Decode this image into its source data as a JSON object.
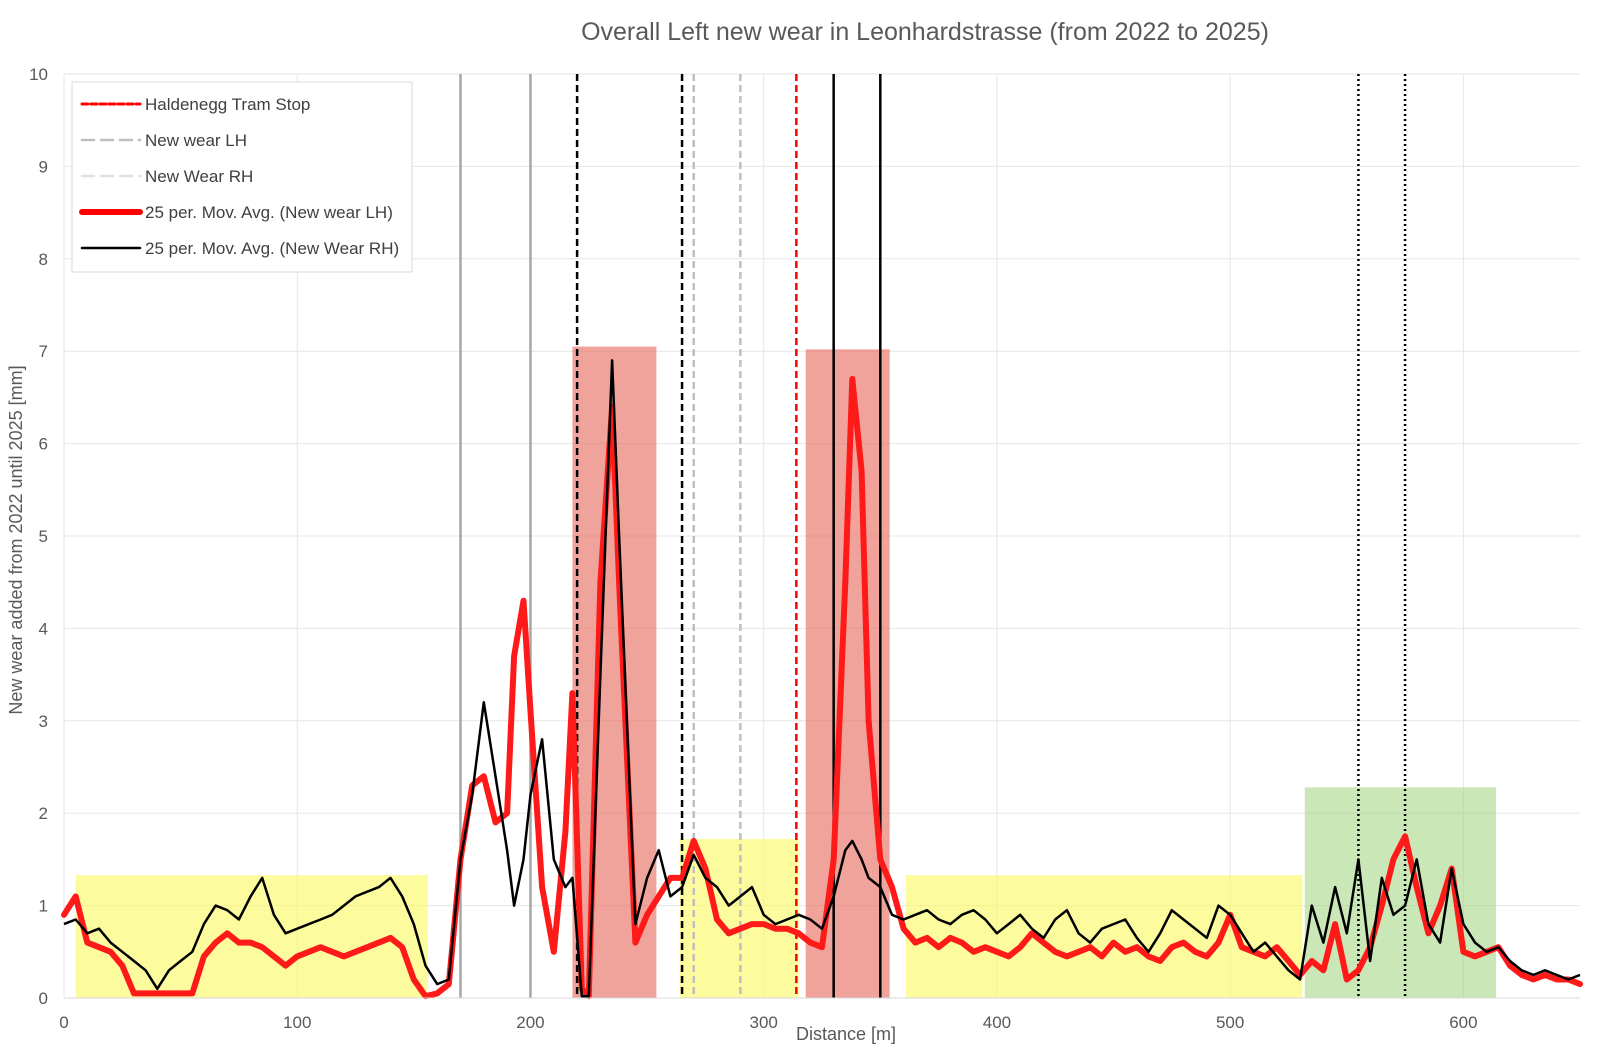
{
  "chart_data": {
    "type": "line",
    "title": "Overall Left new wear in Leonhardstrasse (from 2022 to 2025)",
    "xlabel": "Distance [m]",
    "ylabel": "New wear added from 2022 until 2025  [mm]",
    "xlim": [
      0,
      650
    ],
    "ylim": [
      0,
      10
    ],
    "x_ticks": [
      "0",
      "100",
      "200",
      "300",
      "400",
      "500",
      "600"
    ],
    "y_ticks": [
      "0",
      "1",
      "2",
      "3",
      "4",
      "5",
      "6",
      "7",
      "8",
      "9",
      "10"
    ],
    "grid": true,
    "legend_position": "top-left",
    "colors": {
      "lh_avg": "#ff1a1a",
      "rh_avg": "#000000",
      "tram_stop": "#ff0000",
      "raw": "#c8c8c8"
    },
    "legend": [
      {
        "label": "Haldenegg Tram Stop",
        "style": "red-dashed"
      },
      {
        "label": "New wear LH",
        "style": "gray-dashed"
      },
      {
        "label": "New Wear RH",
        "style": "lightgray-dashed"
      },
      {
        "label": "25 per. Mov. Avg. (New wear LH)",
        "style": "red-thick"
      },
      {
        "label": "25 per. Mov. Avg. (New Wear RH)",
        "style": "black-solid"
      }
    ],
    "highlight_regions": [
      {
        "x0": 5,
        "x1": 156,
        "y1": 1.33,
        "color": "yellow"
      },
      {
        "x0": 218,
        "x1": 254,
        "y1": 7.05,
        "color": "red"
      },
      {
        "x0": 264,
        "x1": 315,
        "y1": 1.72,
        "color": "yellow"
      },
      {
        "x0": 318,
        "x1": 354,
        "y1": 7.02,
        "color": "red"
      },
      {
        "x0": 361,
        "x1": 531,
        "y1": 1.33,
        "color": "yellow"
      },
      {
        "x0": 532,
        "x1": 614,
        "y1": 2.28,
        "color": "green"
      }
    ],
    "vertical_markers": [
      {
        "x": 170,
        "color": "#a6a6a6",
        "dash": "solid"
      },
      {
        "x": 200,
        "color": "#a6a6a6",
        "dash": "solid"
      },
      {
        "x": 220,
        "color": "#000000",
        "dash": "dashed"
      },
      {
        "x": 265,
        "color": "#000000",
        "dash": "dashed"
      },
      {
        "x": 270,
        "color": "#bfbfbf",
        "dash": "dashed"
      },
      {
        "x": 290,
        "color": "#bfbfbf",
        "dash": "dashed"
      },
      {
        "x": 314,
        "color": "#ff0000",
        "dash": "dashed"
      },
      {
        "x": 330,
        "color": "#000000",
        "dash": "solid"
      },
      {
        "x": 350,
        "color": "#000000",
        "dash": "solid"
      },
      {
        "x": 555,
        "color": "#000000",
        "dash": "dotted"
      },
      {
        "x": 575,
        "color": "#000000",
        "dash": "dotted"
      }
    ],
    "series": [
      {
        "name": "25 per. Mov. Avg. (New wear LH)",
        "x": [
          0,
          5,
          10,
          15,
          20,
          25,
          30,
          35,
          40,
          45,
          50,
          55,
          60,
          65,
          70,
          75,
          80,
          85,
          90,
          95,
          100,
          105,
          110,
          115,
          120,
          125,
          130,
          135,
          140,
          145,
          150,
          155,
          160,
          165,
          170,
          175,
          180,
          185,
          190,
          193,
          197,
          200,
          205,
          210,
          215,
          218,
          222,
          225,
          230,
          235,
          238,
          245,
          250,
          255,
          260,
          265,
          270,
          275,
          280,
          285,
          290,
          295,
          300,
          305,
          310,
          315,
          320,
          325,
          330,
          335,
          338,
          342,
          345,
          350,
          355,
          360,
          365,
          370,
          375,
          380,
          385,
          390,
          395,
          400,
          405,
          410,
          415,
          420,
          425,
          430,
          435,
          440,
          445,
          450,
          455,
          460,
          465,
          470,
          475,
          480,
          485,
          490,
          495,
          500,
          505,
          510,
          515,
          520,
          525,
          530,
          535,
          540,
          545,
          550,
          555,
          560,
          565,
          570,
          575,
          580,
          585,
          590,
          595,
          600,
          605,
          610,
          615,
          620,
          625,
          630,
          635,
          640,
          645,
          650
        ],
        "y": [
          0.9,
          1.1,
          0.6,
          0.55,
          0.5,
          0.35,
          0.05,
          0.05,
          0.05,
          0.05,
          0.05,
          0.05,
          0.45,
          0.6,
          0.7,
          0.6,
          0.6,
          0.55,
          0.45,
          0.35,
          0.45,
          0.5,
          0.55,
          0.5,
          0.45,
          0.5,
          0.55,
          0.6,
          0.65,
          0.55,
          0.2,
          0.02,
          0.05,
          0.15,
          1.5,
          2.3,
          2.4,
          1.9,
          2.0,
          3.7,
          4.3,
          3.1,
          1.2,
          0.5,
          1.8,
          3.3,
          0.1,
          0.02,
          4.5,
          6.4,
          4.5,
          0.6,
          0.9,
          1.1,
          1.3,
          1.3,
          1.7,
          1.4,
          0.85,
          0.7,
          0.75,
          0.8,
          0.8,
          0.75,
          0.75,
          0.7,
          0.6,
          0.55,
          1.5,
          4.5,
          6.7,
          5.7,
          3.0,
          1.5,
          1.2,
          0.75,
          0.6,
          0.65,
          0.55,
          0.65,
          0.6,
          0.5,
          0.55,
          0.5,
          0.45,
          0.55,
          0.7,
          0.6,
          0.5,
          0.45,
          0.5,
          0.55,
          0.45,
          0.6,
          0.5,
          0.55,
          0.45,
          0.4,
          0.55,
          0.6,
          0.5,
          0.45,
          0.6,
          0.9,
          0.55,
          0.5,
          0.45,
          0.55,
          0.4,
          0.25,
          0.4,
          0.3,
          0.8,
          0.2,
          0.3,
          0.55,
          1.0,
          1.5,
          1.75,
          1.2,
          0.7,
          1.0,
          1.4,
          0.5,
          0.45,
          0.5,
          0.55,
          0.35,
          0.25,
          0.2,
          0.25,
          0.2,
          0.2,
          0.15
        ]
      },
      {
        "name": "25 per. Mov. Avg. (New Wear RH)",
        "x": [
          0,
          5,
          10,
          15,
          20,
          25,
          30,
          35,
          40,
          45,
          50,
          55,
          60,
          65,
          70,
          75,
          80,
          85,
          90,
          95,
          100,
          105,
          110,
          115,
          120,
          125,
          130,
          135,
          140,
          145,
          150,
          155,
          160,
          165,
          170,
          175,
          180,
          185,
          190,
          193,
          197,
          200,
          205,
          210,
          215,
          218,
          222,
          225,
          230,
          235,
          238,
          245,
          250,
          255,
          260,
          265,
          270,
          275,
          280,
          285,
          290,
          295,
          300,
          305,
          310,
          315,
          320,
          325,
          330,
          335,
          338,
          342,
          345,
          350,
          355,
          360,
          365,
          370,
          375,
          380,
          385,
          390,
          395,
          400,
          405,
          410,
          415,
          420,
          425,
          430,
          435,
          440,
          445,
          450,
          455,
          460,
          465,
          470,
          475,
          480,
          485,
          490,
          495,
          500,
          505,
          510,
          515,
          520,
          525,
          530,
          535,
          540,
          545,
          550,
          555,
          560,
          565,
          570,
          575,
          580,
          585,
          590,
          595,
          600,
          605,
          610,
          615,
          620,
          625,
          630,
          635,
          640,
          645,
          650
        ],
        "y": [
          0.8,
          0.85,
          0.7,
          0.75,
          0.6,
          0.5,
          0.4,
          0.3,
          0.1,
          0.3,
          0.4,
          0.5,
          0.8,
          1.0,
          0.95,
          0.85,
          1.1,
          1.3,
          0.9,
          0.7,
          0.75,
          0.8,
          0.85,
          0.9,
          1.0,
          1.1,
          1.15,
          1.2,
          1.3,
          1.1,
          0.8,
          0.35,
          0.15,
          0.2,
          1.5,
          2.2,
          3.2,
          2.4,
          1.6,
          1.0,
          1.5,
          2.2,
          2.8,
          1.5,
          1.2,
          1.3,
          0.02,
          0.02,
          3.5,
          6.9,
          5.0,
          0.8,
          1.3,
          1.6,
          1.1,
          1.2,
          1.55,
          1.3,
          1.2,
          1.0,
          1.1,
          1.2,
          0.9,
          0.8,
          0.85,
          0.9,
          0.85,
          0.75,
          1.1,
          1.6,
          1.7,
          1.5,
          1.3,
          1.2,
          0.9,
          0.85,
          0.9,
          0.95,
          0.85,
          0.8,
          0.9,
          0.95,
          0.85,
          0.7,
          0.8,
          0.9,
          0.75,
          0.65,
          0.85,
          0.95,
          0.7,
          0.6,
          0.75,
          0.8,
          0.85,
          0.65,
          0.5,
          0.7,
          0.95,
          0.85,
          0.75,
          0.65,
          1.0,
          0.9,
          0.7,
          0.5,
          0.6,
          0.45,
          0.3,
          0.2,
          1.0,
          0.6,
          1.2,
          0.7,
          1.5,
          0.4,
          1.3,
          0.9,
          1.0,
          1.5,
          0.8,
          0.6,
          1.4,
          0.8,
          0.6,
          0.5,
          0.55,
          0.4,
          0.3,
          0.25,
          0.3,
          0.25,
          0.2,
          0.25
        ]
      }
    ]
  }
}
